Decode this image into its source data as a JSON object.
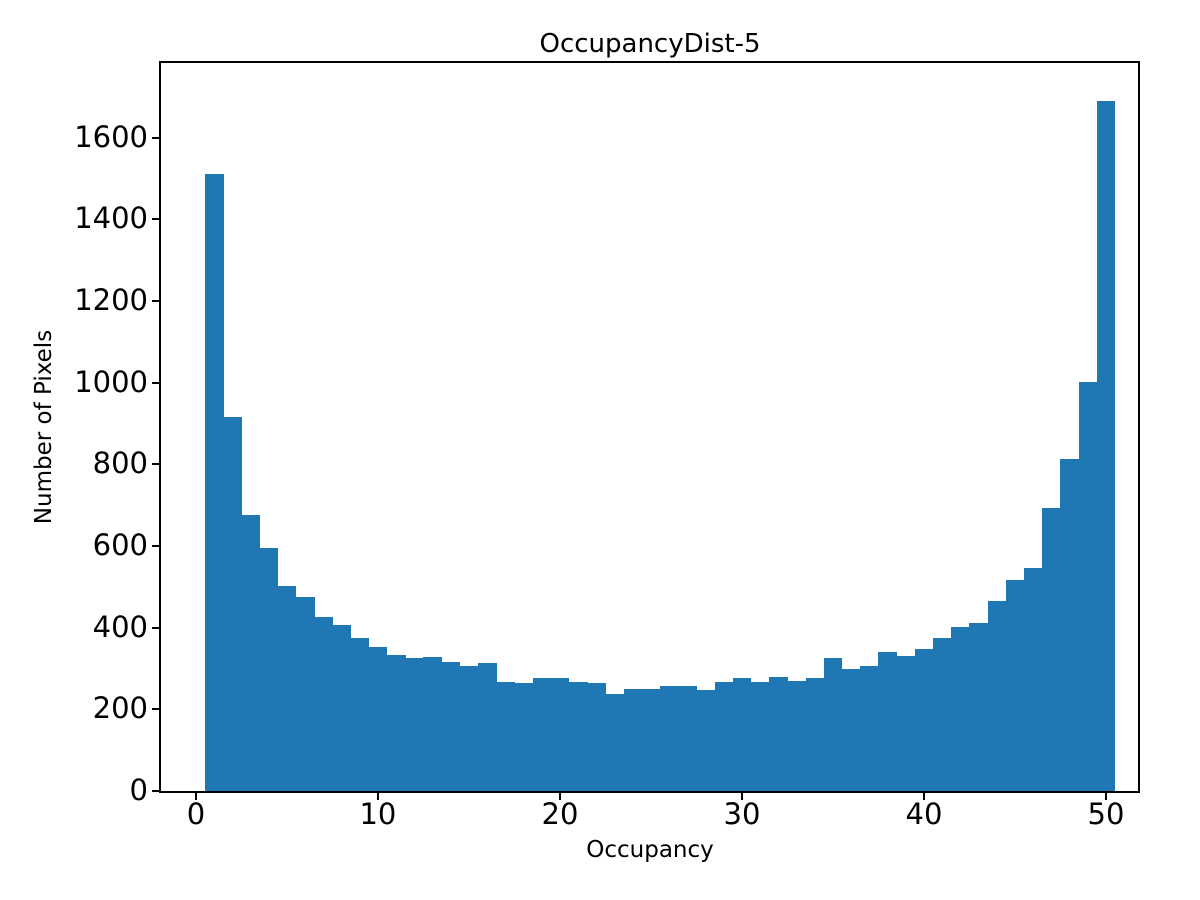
{
  "chart_data": {
    "type": "bar",
    "subtype": "histogram",
    "title": "OccupancyDist-5",
    "xlabel": "Occupancy",
    "ylabel": "Number of Pixels",
    "bar_color": "#1f77b4",
    "text_color": "#000000",
    "grid": false,
    "legend": null,
    "bin_start": 0.5,
    "bin_width": 1.0,
    "values": [
      1510,
      915,
      676,
      594,
      503,
      474,
      427,
      406,
      374,
      352,
      332,
      327,
      329,
      315,
      305,
      313,
      266,
      264,
      278,
      278,
      266,
      265,
      238,
      250,
      250,
      258,
      258,
      248,
      268,
      276,
      268,
      280,
      270,
      277,
      325,
      300,
      305,
      340,
      331,
      349,
      375,
      402,
      411,
      466,
      518,
      545,
      692,
      814,
      1002,
      1690
    ],
    "x_ticks": [
      0,
      10,
      20,
      30,
      40,
      50
    ],
    "y_ticks": [
      0,
      200,
      400,
      600,
      800,
      1000,
      1200,
      1400,
      1600
    ],
    "xlim": [
      -1.92,
      51.76
    ],
    "ylim": [
      0,
      1783
    ]
  }
}
